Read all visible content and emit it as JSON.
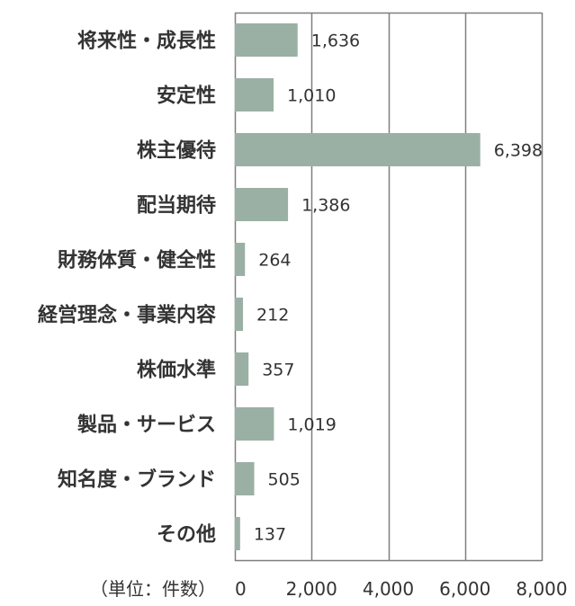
{
  "chart_data": {
    "type": "bar",
    "orientation": "horizontal",
    "categories": [
      "将来性・成長性",
      "安定性",
      "株主優待",
      "配当期待",
      "財務体質・健全性",
      "経営理念・事業内容",
      "株価水準",
      "製品・サービス",
      "知名度・ブランド",
      "その他"
    ],
    "values": [
      1636,
      1010,
      6398,
      1386,
      264,
      212,
      357,
      1019,
      505,
      137
    ],
    "value_labels": [
      "1,636",
      "1,010",
      "6,398",
      "1,386",
      "264",
      "212",
      "357",
      "1,019",
      "505",
      "137"
    ],
    "xlim": [
      0,
      8000
    ],
    "x_ticks": [
      0,
      2000,
      4000,
      6000,
      8000
    ],
    "x_tick_labels": [
      "0",
      "2,000",
      "4,000",
      "6,000",
      "8,000"
    ],
    "unit_label": "（単位：件数）",
    "grid": true,
    "legend": "none"
  },
  "colors": {
    "bar": "#9bb0a4",
    "grid": "#7f7f7f",
    "text": "#333333"
  }
}
